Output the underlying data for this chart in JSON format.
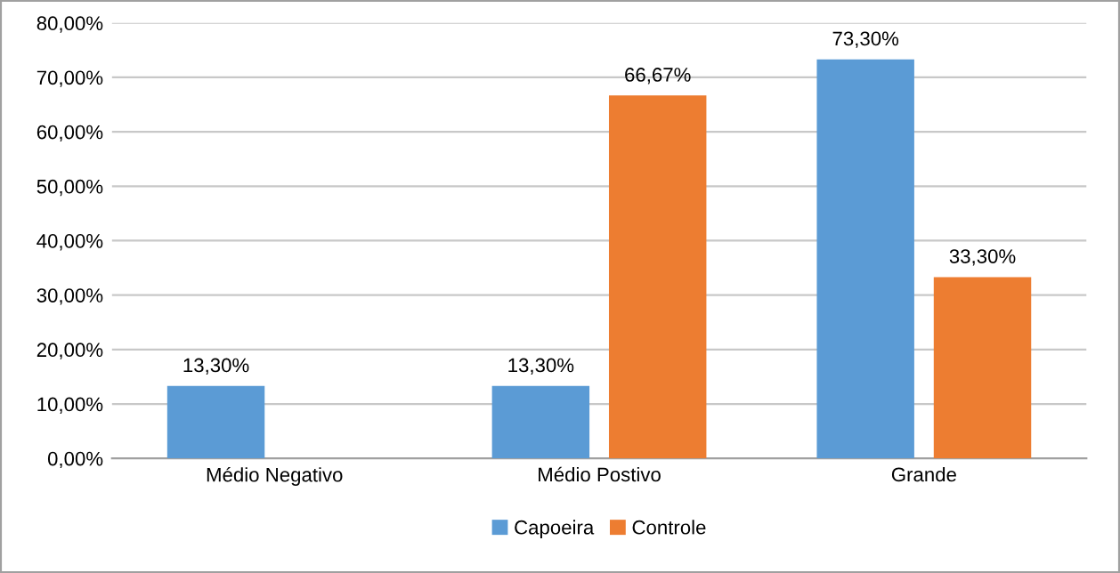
{
  "chart_data": {
    "type": "bar",
    "categories": [
      "Médio Negativo",
      "Médio Postivo",
      "Grande"
    ],
    "series": [
      {
        "name": "Capoeira",
        "color": "#5b9bd5",
        "values": [
          13.3,
          13.3,
          73.3
        ],
        "value_labels": [
          "13,30%",
          "13,30%",
          "73,30%"
        ]
      },
      {
        "name": "Controle",
        "color": "#ed7d31",
        "values": [
          null,
          66.67,
          33.3
        ],
        "value_labels": [
          null,
          "66,67%",
          "33,30%"
        ]
      }
    ],
    "ylim": [
      0,
      80
    ],
    "yticks": [
      {
        "value": 0,
        "label": "0,00%"
      },
      {
        "value": 10,
        "label": "10,00%"
      },
      {
        "value": 20,
        "label": "20,00%"
      },
      {
        "value": 30,
        "label": "30,00%"
      },
      {
        "value": 40,
        "label": "40,00%"
      },
      {
        "value": 50,
        "label": "50,00%"
      },
      {
        "value": 60,
        "label": "60,00%"
      },
      {
        "value": 70,
        "label": "70,00%"
      },
      {
        "value": 80,
        "label": "80,00%"
      }
    ],
    "grid": "y",
    "legend": "bottom"
  }
}
